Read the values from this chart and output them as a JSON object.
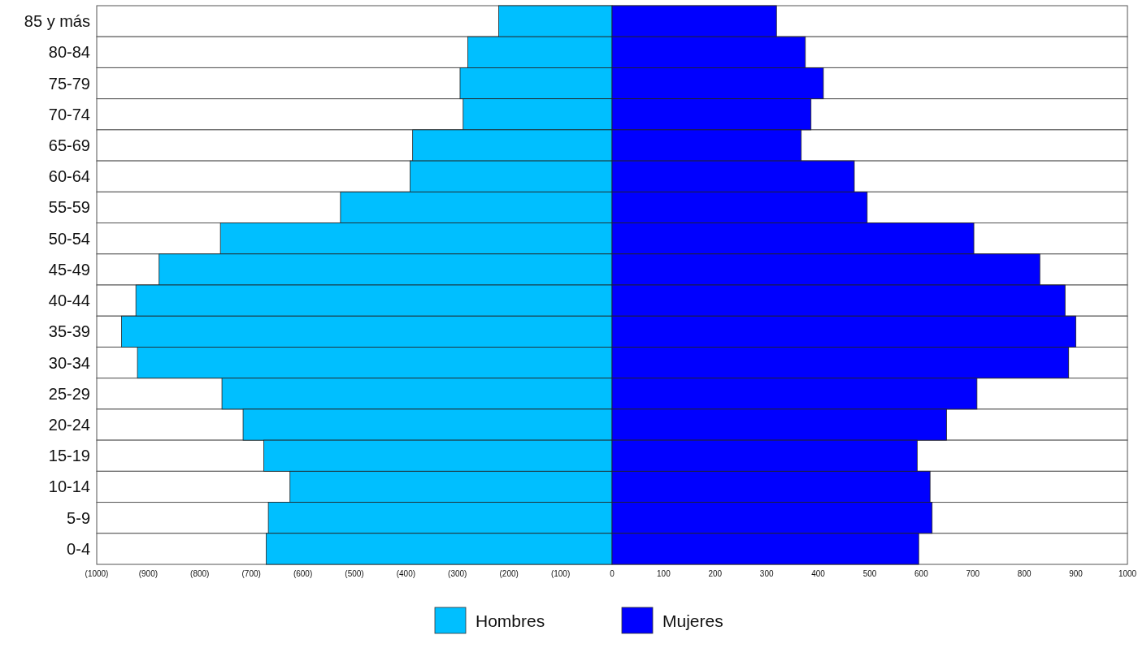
{
  "chart_data": {
    "type": "bar",
    "orientation": "horizontal",
    "stacked": true,
    "categories": [
      "85 y más",
      "80-84",
      "75-79",
      "70-74",
      "65-69",
      "60-64",
      "55-59",
      "50-54",
      "45-49",
      "40-44",
      "35-39",
      "30-34",
      "25-29",
      "20-24",
      "15-19",
      "10-14",
      "5-9",
      "0-4"
    ],
    "series": [
      {
        "name": "Hombres",
        "color": "#00bfff",
        "values": [
          -220,
          -280,
          -295,
          -289,
          -387,
          -392,
          -527,
          -760,
          -879,
          -924,
          -952,
          -921,
          -757,
          -716,
          -676,
          -625,
          -667,
          -671
        ]
      },
      {
        "name": "Mujeres",
        "color": "#0000ff",
        "values": [
          319,
          375,
          410,
          386,
          367,
          470,
          495,
          702,
          830,
          879,
          900,
          886,
          708,
          649,
          592,
          617,
          621,
          595
        ]
      }
    ],
    "xlim": [
      -1000,
      1000
    ],
    "xticks": [
      {
        "value": -1000,
        "label": "(1000)"
      },
      {
        "value": -900,
        "label": "(900)"
      },
      {
        "value": -800,
        "label": "(800)"
      },
      {
        "value": -700,
        "label": "(700)"
      },
      {
        "value": -600,
        "label": "(600)"
      },
      {
        "value": -500,
        "label": "(500)"
      },
      {
        "value": -400,
        "label": "(400)"
      },
      {
        "value": -300,
        "label": "(300)"
      },
      {
        "value": -200,
        "label": "(200)"
      },
      {
        "value": -100,
        "label": "(100)"
      },
      0,
      100,
      200,
      300,
      400,
      500,
      600,
      700,
      800,
      900,
      1000
    ],
    "grid": false,
    "legend": "bottom"
  }
}
